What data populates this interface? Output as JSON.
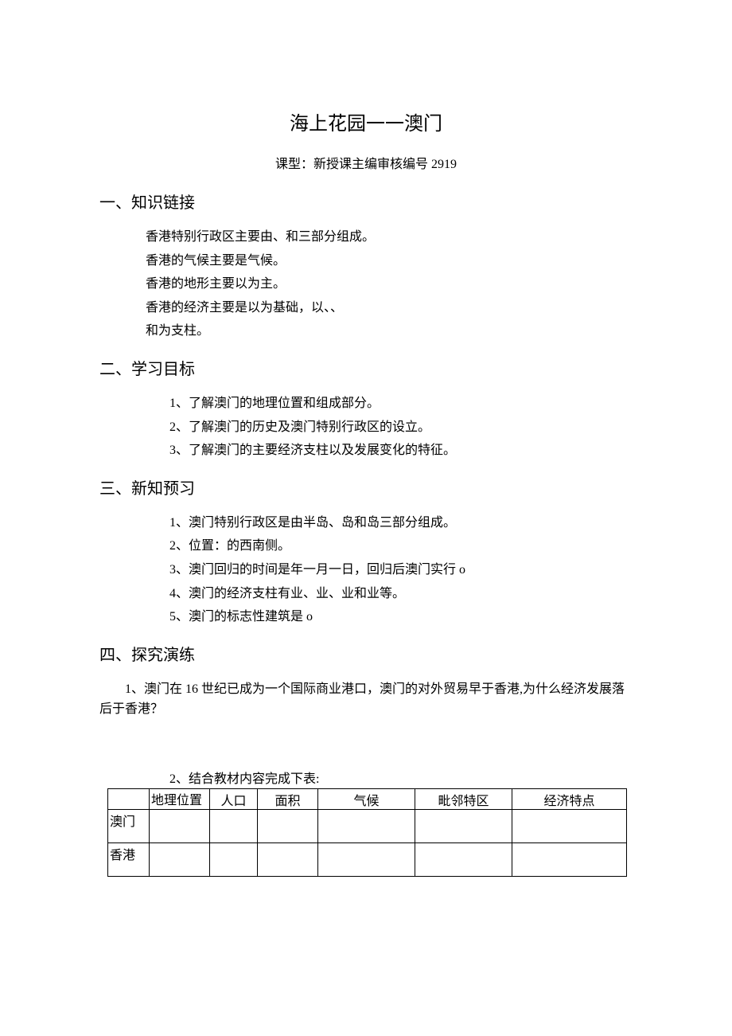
{
  "title": "海上花园一一澳门",
  "subtitle": "课型：新授课主编审核编号 2919",
  "sections": {
    "s1": {
      "heading": "一、知识链接",
      "lines": [
        "香港特别行政区主要由、和三部分组成。",
        "香港的气候主要是气候。",
        "香港的地形主要以为主。",
        "香港的经济主要是以为基础，以、、",
        "和为支柱。"
      ]
    },
    "s2": {
      "heading": "二、学习目标",
      "lines": [
        "1、了解澳门的地理位置和组成部分。",
        "2、了解澳门的历史及澳门特别行政区的设立。",
        "3、了解澳门的主要经济支柱以及发展变化的特征。"
      ]
    },
    "s3": {
      "heading": "三、新知预习",
      "lines": [
        "1、澳门特别行政区是由半岛、岛和岛三部分组成。",
        "2、位置：的西南侧。",
        "3、澳门回归的时间是年一月一日，回归后澳门实行 o",
        "4、澳门的经济支柱有业、业、业和业等。",
        "5、澳门的标志性建筑是 o"
      ]
    },
    "s4": {
      "heading": "四、探究演练",
      "q1": "1、澳门在 16 世纪已成为一个国际商业港口，澳门的对外贸易早于香港,为什么经济发展落后于香港？",
      "q2_caption": "2、结合教材内容完成下表:",
      "table": {
        "headers": {
          "geo": "地理位置",
          "pop": "人口",
          "area": "面积",
          "climate": "气候",
          "neighbor": "毗邻特区",
          "econ": "经济特点"
        },
        "rows": [
          {
            "label": "澳门"
          },
          {
            "label": "香港"
          }
        ]
      }
    }
  }
}
